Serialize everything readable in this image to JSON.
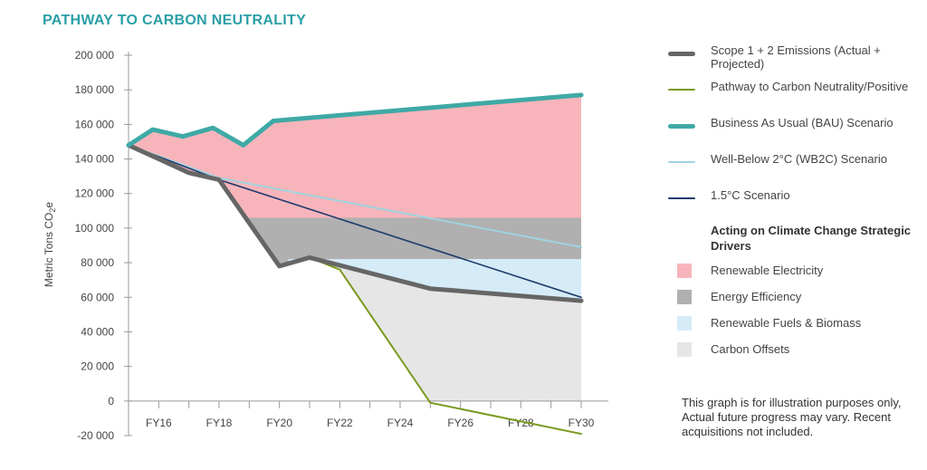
{
  "title": "PATHWAY TO CARBON NEUTRALITY",
  "note": "This graph is for illustration purposes only, Actual future progress may vary. Recent acquisitions not included.",
  "legend": {
    "series": [
      {
        "key": "scope12",
        "label": "Scope 1 + 2 Emissions (Actual + Projected)",
        "color": "#666666",
        "thick": true
      },
      {
        "key": "pathway",
        "label": "Pathway to Carbon Neutrality/Positive",
        "color": "#7a9a1f",
        "thick": false
      },
      {
        "key": "bau",
        "label": "Business As Usual (BAU) Scenario",
        "color": "#3fa9a6",
        "thick": true
      },
      {
        "key": "wb2c",
        "label": "Well-Below 2°C (WB2C) Scenario",
        "color": "#9fd3df",
        "thick": false
      },
      {
        "key": "c15",
        "label": "1.5°C Scenario",
        "color": "#1f3a6e",
        "thick": false
      }
    ],
    "drivers_title": "Acting on Climate Change Strategic Drivers",
    "drivers": [
      {
        "label": "Renewable Electricity",
        "color": "#f7b5bb"
      },
      {
        "label": "Energy Efficiency",
        "color": "#b0b0b0"
      },
      {
        "label": "Renewable Fuels & Biomass",
        "color": "#d5ecf8"
      },
      {
        "label": "Carbon Offsets",
        "color": "#e6e6e6"
      }
    ]
  },
  "chart_data": {
    "type": "line",
    "title": "PATHWAY TO CARBON NEUTRALITY",
    "xlabel": "",
    "ylabel": "Metric Tons CO2e",
    "ylabel_main": "Metric Tons CO",
    "ylabel_sub": "2",
    "ylabel_end": "e",
    "xlim": [
      2015,
      2030
    ],
    "ylim": [
      -20000,
      200000
    ],
    "yticks": [
      -20000,
      0,
      20000,
      40000,
      60000,
      80000,
      100000,
      120000,
      140000,
      160000,
      180000,
      200000
    ],
    "ytick_labels": [
      "-20 000",
      "0",
      "20 000",
      "40 000",
      "60 000",
      "80 000",
      "100 000",
      "120 000",
      "140 000",
      "160 000",
      "180 000",
      "200 000"
    ],
    "xticks": [
      2016,
      2018,
      2020,
      2022,
      2024,
      2026,
      2028,
      2030
    ],
    "xtick_labels": [
      "FY16",
      "FY18",
      "FY20",
      "FY22",
      "FY24",
      "FY26",
      "FY28",
      "FY30"
    ],
    "series": [
      {
        "name": "Business As Usual (BAU) Scenario",
        "key": "bau",
        "x": [
          2015,
          2015.8,
          2016.8,
          2017.8,
          2018.8,
          2019.8,
          2030
        ],
        "y": [
          148000,
          157000,
          153000,
          158000,
          148000,
          162000,
          177000
        ]
      },
      {
        "name": "Scope 1 + 2 Emissions (Actual + Projected)",
        "key": "scope12",
        "x": [
          2015,
          2016,
          2017,
          2018,
          2019,
          2020,
          2021,
          2025,
          2030
        ],
        "y": [
          148000,
          140000,
          132000,
          128000,
          103000,
          78000,
          83000,
          65000,
          58000
        ]
      },
      {
        "name": "Pathway to Carbon Neutrality/Positive",
        "key": "pathway",
        "x": [
          2015,
          2016,
          2017,
          2018,
          2019,
          2020,
          2021,
          2022,
          2025,
          2030
        ],
        "y": [
          148000,
          140000,
          132000,
          128000,
          103000,
          78000,
          83000,
          76000,
          -1000,
          -19000
        ]
      },
      {
        "name": "Well-Below 2°C (WB2C) Scenario",
        "key": "wb2c",
        "x": [
          2015,
          2018,
          2030
        ],
        "y": [
          148000,
          129000,
          89000
        ]
      },
      {
        "name": "1.5°C Scenario",
        "key": "c15",
        "x": [
          2015,
          2018,
          2030
        ],
        "y": [
          148000,
          128000,
          60000
        ]
      }
    ],
    "bands": [
      {
        "name": "Renewable Electricity",
        "from_x": 2018.9,
        "low": 106000,
        "high": "bau"
      },
      {
        "name": "Energy Efficiency",
        "from_x": 2018.9,
        "low": 82000,
        "high": 106000
      },
      {
        "name": "Renewable Fuels & Biomass",
        "from_x": 2020,
        "low": "scope12",
        "high": 82000
      },
      {
        "name": "Carbon Offsets",
        "from_x": 2022,
        "low": "pathway_clip0",
        "high": "scope12"
      }
    ]
  }
}
